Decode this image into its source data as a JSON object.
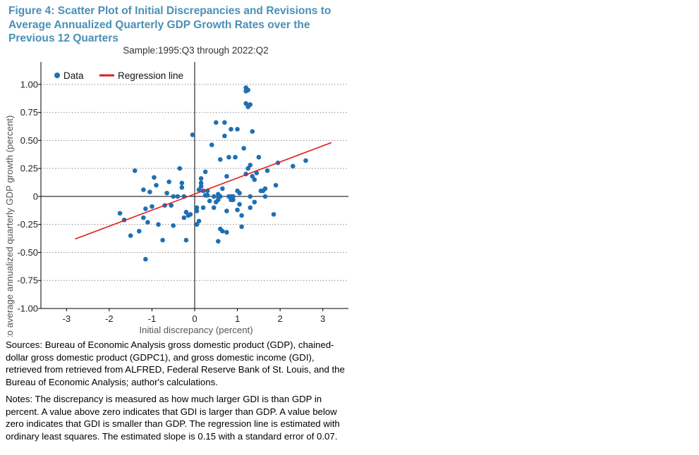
{
  "figure": {
    "title": "Figure 4: Scatter Plot of Initial Discrepancies and Revisions to Average Annualized Quarterly GDP Growth Rates over the Previous 12 Quarters",
    "subtitle": "Sample:1995:Q3 through 2022:Q2",
    "sources": "Sources: Bureau of Economic Analysis gross domestic product (GDP), chained-dollar gross domestic product (GDPC1), and gross domestic income (GDI), retrieved from retrieved from ALFRED, Federal Reserve Bank of St. Louis, and the Bureau of Economic Analysis; author's calculations.",
    "notes": "Notes: The discrepancy is measured as how much larger GDI is than GDP in percent. A value above zero indicates that GDI is larger than GDP. A value below zero indicates that GDI is smaller than GDP. The regression line is estimated with ordinary least squares. The estimated slope is 0.15 with a standard error of 0.07."
  },
  "colors": {
    "title": "#4a90b5",
    "points": "#1f6fb2",
    "regression": "#e01c1c",
    "grid": "#8c8c8c"
  },
  "chart_data": {
    "type": "scatter",
    "xlabel": "Initial discrepancy (percent)",
    "ylabel": "Revision to average annualized quarterly GDP growth (percent)",
    "xlim": [
      -3.6,
      3.6
    ],
    "ylim": [
      -1.0,
      1.2
    ],
    "x_ticks": [
      -3,
      -2,
      -1,
      0,
      1,
      2,
      3
    ],
    "x_tick_labels": [
      "-3",
      "-2",
      "-1",
      "0",
      "1",
      "2",
      "3"
    ],
    "y_ticks": [
      1.0,
      0.75,
      0.5,
      0.25,
      0,
      -0.25,
      -0.5,
      -0.75,
      -1.0
    ],
    "y_tick_labels": [
      "1.00",
      "0.75",
      "0.50",
      "0.25",
      "0",
      "-0.25",
      "-0.50",
      "-0.75",
      "-1.00"
    ],
    "grid": "horizontal dotted",
    "legend": {
      "position": "top-left",
      "entries": [
        "Data",
        "Regression line"
      ]
    },
    "series": [
      {
        "name": "Data",
        "type": "scatter",
        "x": [
          -1.75,
          -1.65,
          -1.5,
          -1.4,
          -1.3,
          -1.2,
          -1.2,
          -1.15,
          -1.15,
          -1.1,
          -1.05,
          -1.0,
          -0.95,
          -0.9,
          -0.85,
          -0.75,
          -0.7,
          -0.65,
          -0.6,
          -0.55,
          -0.5,
          -0.5,
          -0.4,
          -0.35,
          -0.3,
          -0.3,
          -0.25,
          -0.25,
          -0.2,
          -0.2,
          -0.15,
          -0.1,
          -0.05,
          0.05,
          0.05,
          0.1,
          0.1,
          0.15,
          0.15,
          0.2,
          0.25,
          0.3,
          0.35,
          0.4,
          0.45,
          0.5,
          0.5,
          0.55,
          0.55,
          0.55,
          0.6,
          0.6,
          0.65,
          0.65,
          0.7,
          0.7,
          0.75,
          0.75,
          0.8,
          0.8,
          0.85,
          0.85,
          0.9,
          0.95,
          1.0,
          1.0,
          1.05,
          1.05,
          1.1,
          1.15,
          1.2,
          1.2,
          1.2,
          1.2,
          1.25,
          1.25,
          1.3,
          1.3,
          1.3,
          1.35,
          1.4,
          1.4,
          1.45,
          1.5,
          1.55,
          1.6,
          1.65,
          1.65,
          1.7,
          1.85,
          1.9,
          1.95,
          2.3,
          2.6,
          0.2,
          0.3,
          0.9,
          1.0,
          1.1,
          0.6,
          0.75,
          0.45,
          0.25,
          0.05,
          1.25,
          1.3,
          1.35,
          0.15,
          0.55,
          0.85
        ],
        "y": [
          -0.15,
          -0.21,
          -0.35,
          0.23,
          -0.31,
          -0.19,
          0.06,
          -0.11,
          -0.56,
          -0.23,
          0.04,
          -0.09,
          0.17,
          0.1,
          -0.25,
          -0.39,
          -0.08,
          0.03,
          0.13,
          -0.08,
          -0.26,
          0.0,
          0.0,
          0.25,
          0.12,
          0.08,
          -0.19,
          0.0,
          -0.14,
          -0.39,
          -0.17,
          -0.16,
          0.55,
          -0.1,
          -0.25,
          0.06,
          -0.22,
          0.16,
          0.12,
          0.05,
          0.22,
          0.05,
          -0.04,
          0.46,
          0.0,
          0.66,
          -0.05,
          0.0,
          -0.03,
          0.02,
          -0.29,
          0.33,
          -0.31,
          0.07,
          0.54,
          0.66,
          0.18,
          -0.13,
          0.35,
          0.0,
          0.6,
          -0.03,
          0.0,
          0.35,
          0.6,
          0.05,
          -0.07,
          0.03,
          -0.17,
          0.43,
          0.97,
          0.94,
          0.83,
          0.2,
          0.25,
          0.8,
          0.28,
          0.0,
          -0.1,
          0.58,
          0.15,
          -0.05,
          0.21,
          0.35,
          0.05,
          0.05,
          0.07,
          0.0,
          0.23,
          -0.16,
          0.1,
          0.3,
          0.27,
          0.32,
          -0.1,
          0.01,
          -0.03,
          -0.12,
          -0.27,
          0.0,
          -0.32,
          -0.1,
          0.01,
          -0.13,
          0.95,
          0.82,
          0.18,
          0.09,
          -0.4,
          0.0
        ]
      },
      {
        "name": "Regression line",
        "type": "line",
        "x": [
          -2.8,
          3.2
        ],
        "y": [
          -0.38,
          0.48
        ]
      }
    ]
  }
}
